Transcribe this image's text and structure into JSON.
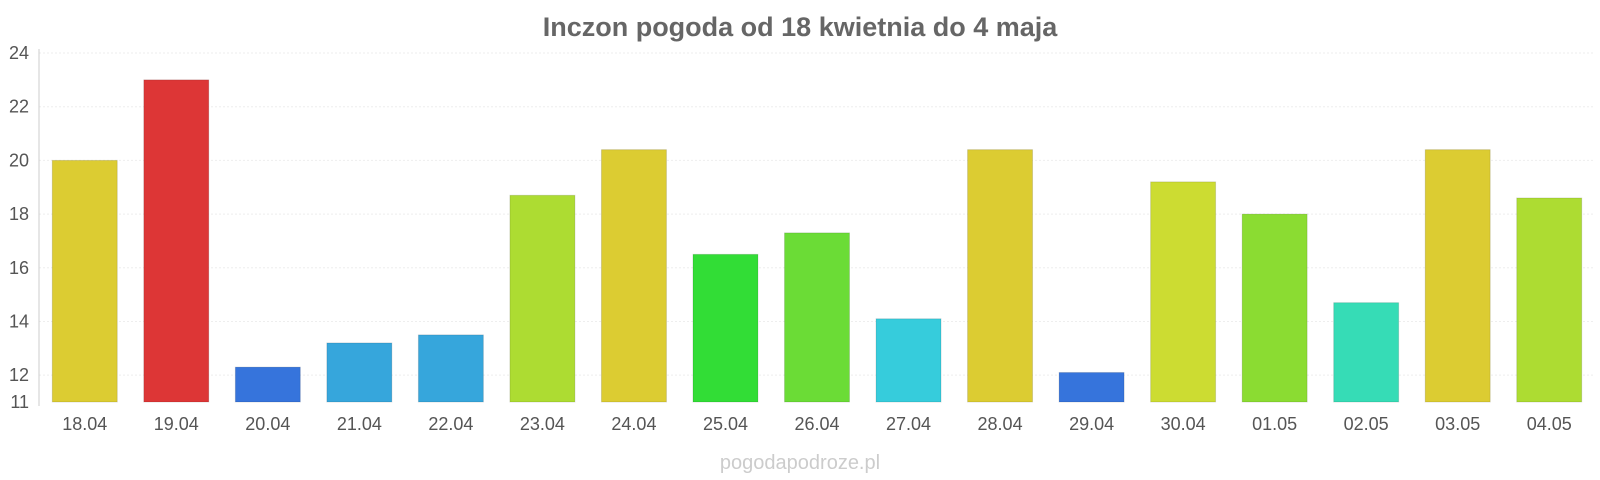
{
  "chart_data": {
    "type": "bar",
    "title": "Inczon pogoda od 18 kwietnia do 4 maja",
    "xlabel": "",
    "ylabel": "",
    "categories": [
      "18.04",
      "19.04",
      "20.04",
      "21.04",
      "22.04",
      "23.04",
      "24.04",
      "25.04",
      "26.04",
      "27.04",
      "28.04",
      "29.04",
      "30.04",
      "01.05",
      "02.05",
      "03.05",
      "04.05"
    ],
    "values": [
      20.0,
      23.0,
      12.3,
      13.2,
      13.5,
      18.7,
      20.4,
      16.5,
      17.3,
      14.1,
      20.4,
      12.1,
      19.2,
      18.0,
      14.7,
      20.4,
      18.6
    ],
    "colors": [
      "#dccc32",
      "#dd3636",
      "#3674dc",
      "#36a6dc",
      "#36a6dc",
      "#addc32",
      "#dccc32",
      "#32dd36",
      "#6bdc36",
      "#36ccdc",
      "#dccc32",
      "#3674dc",
      "#ccdc32",
      "#8bdc32",
      "#36dcb6",
      "#dccc32",
      "#addc32"
    ],
    "ylim": [
      11,
      24
    ],
    "yticks": [
      11,
      12,
      14,
      16,
      18,
      20,
      22,
      24
    ],
    "grid": true,
    "legend": "none"
  },
  "watermark": "pogodapodroze.pl"
}
